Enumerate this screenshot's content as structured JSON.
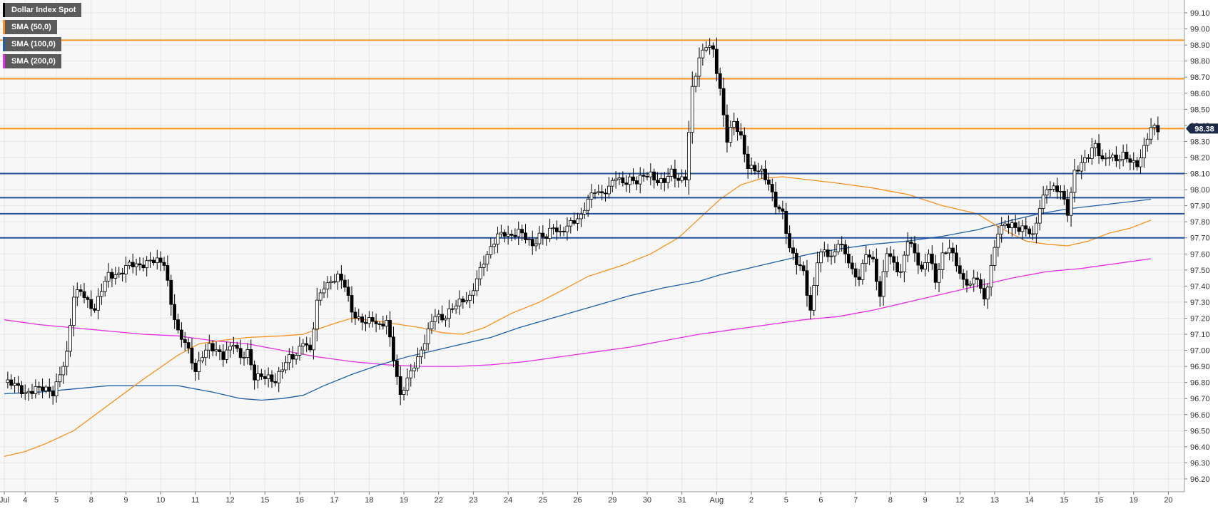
{
  "legend": [
    {
      "label": "Dollar Index Spot",
      "color": "#000000"
    },
    {
      "label": "SMA (50,0)",
      "color": "#f7931e"
    },
    {
      "label": "SMA (100,0)",
      "color": "#1f5fa8"
    },
    {
      "label": "SMA (200,0)",
      "color": "#e62ee6"
    }
  ],
  "last_price": "98.38",
  "colors": {
    "up_fill": "#ffffff",
    "down_fill": "#000000",
    "wick": "#000000",
    "sma50": "#f7931e",
    "sma100": "#1f5fa8",
    "sma200": "#e62ee6",
    "resistance": "#f7931e",
    "support": "#1f4e9a",
    "grid": "#e6e6e6",
    "plot_bg": "#f7f7f7"
  },
  "chart_data": {
    "type": "candlestick",
    "title": "Dollar Index Spot",
    "ylim": [
      96.12,
      99.18
    ],
    "y_ticks": [
      "99.10",
      "99.00",
      "98.90",
      "98.80",
      "98.70",
      "98.60",
      "98.50",
      "98.40",
      "98.30",
      "98.20",
      "98.10",
      "98.00",
      "97.90",
      "97.80",
      "97.70",
      "97.60",
      "97.50",
      "97.40",
      "97.30",
      "97.20",
      "97.10",
      "97.00",
      "96.90",
      "96.80",
      "96.70",
      "96.60",
      "96.50",
      "96.40",
      "96.30",
      "96.20"
    ],
    "x_ticks": [
      {
        "label": "Jul",
        "bar": 0
      },
      {
        "label": "4",
        "bar": 6
      },
      {
        "label": "5",
        "bar": 15
      },
      {
        "label": "8",
        "bar": 25
      },
      {
        "label": "9",
        "bar": 35
      },
      {
        "label": "10",
        "bar": 45
      },
      {
        "label": "11",
        "bar": 55
      },
      {
        "label": "12",
        "bar": 65
      },
      {
        "label": "15",
        "bar": 75
      },
      {
        "label": "16",
        "bar": 85
      },
      {
        "label": "17",
        "bar": 95
      },
      {
        "label": "18",
        "bar": 105
      },
      {
        "label": "19",
        "bar": 115
      },
      {
        "label": "22",
        "bar": 125
      },
      {
        "label": "23",
        "bar": 135
      },
      {
        "label": "24",
        "bar": 145
      },
      {
        "label": "25",
        "bar": 155
      },
      {
        "label": "26",
        "bar": 165
      },
      {
        "label": "29",
        "bar": 175
      },
      {
        "label": "30",
        "bar": 185
      },
      {
        "label": "31",
        "bar": 195
      },
      {
        "label": "Aug",
        "bar": 205
      },
      {
        "label": "2",
        "bar": 215
      },
      {
        "label": "5",
        "bar": 225
      },
      {
        "label": "6",
        "bar": 235
      },
      {
        "label": "7",
        "bar": 245
      },
      {
        "label": "8",
        "bar": 255
      },
      {
        "label": "9",
        "bar": 265
      },
      {
        "label": "12",
        "bar": 275
      },
      {
        "label": "13",
        "bar": 285
      },
      {
        "label": "14",
        "bar": 295
      },
      {
        "label": "15",
        "bar": 305
      },
      {
        "label": "16",
        "bar": 315
      },
      {
        "label": "19",
        "bar": 325
      },
      {
        "label": "20",
        "bar": 335
      }
    ],
    "resistance_levels": [
      98.93,
      98.69,
      98.38
    ],
    "support_levels": [
      98.1,
      97.95,
      97.85,
      97.7
    ],
    "ohlc_anchors": [
      [
        0,
        96.8
      ],
      [
        3,
        96.78
      ],
      [
        6,
        96.74
      ],
      [
        9,
        96.76
      ],
      [
        12,
        96.75
      ],
      [
        14,
        96.74
      ],
      [
        16,
        96.86
      ],
      [
        18,
        96.97
      ],
      [
        20,
        97.33
      ],
      [
        22,
        97.38
      ],
      [
        24,
        97.31
      ],
      [
        26,
        97.25
      ],
      [
        28,
        97.37
      ],
      [
        30,
        97.47
      ],
      [
        33,
        97.48
      ],
      [
        36,
        97.53
      ],
      [
        38,
        97.52
      ],
      [
        40,
        97.54
      ],
      [
        42,
        97.57
      ],
      [
        44,
        97.55
      ],
      [
        46,
        97.53
      ],
      [
        48,
        97.3
      ],
      [
        50,
        97.12
      ],
      [
        52,
        97.05
      ],
      [
        55,
        96.86
      ],
      [
        57,
        96.98
      ],
      [
        59,
        97.04
      ],
      [
        61,
        96.99
      ],
      [
        63,
        96.95
      ],
      [
        66,
        97.06
      ],
      [
        68,
        96.96
      ],
      [
        70,
        96.98
      ],
      [
        72,
        96.82
      ],
      [
        74,
        96.85
      ],
      [
        76,
        96.84
      ],
      [
        78,
        96.8
      ],
      [
        80,
        96.88
      ],
      [
        82,
        96.96
      ],
      [
        84,
        96.98
      ],
      [
        86,
        97.06
      ],
      [
        88,
        96.98
      ],
      [
        90,
        97.3
      ],
      [
        92,
        97.41
      ],
      [
        94,
        97.43
      ],
      [
        96,
        97.45
      ],
      [
        98,
        97.4
      ],
      [
        100,
        97.25
      ],
      [
        102,
        97.2
      ],
      [
        104,
        97.17
      ],
      [
        106,
        97.18
      ],
      [
        108,
        97.15
      ],
      [
        110,
        97.2
      ],
      [
        112,
        96.95
      ],
      [
        114,
        96.7
      ],
      [
        116,
        96.82
      ],
      [
        118,
        96.92
      ],
      [
        120,
        97.0
      ],
      [
        122,
        97.11
      ],
      [
        124,
        97.22
      ],
      [
        126,
        97.2
      ],
      [
        128,
        97.25
      ],
      [
        130,
        97.28
      ],
      [
        132,
        97.3
      ],
      [
        134,
        97.33
      ],
      [
        136,
        97.46
      ],
      [
        138,
        97.55
      ],
      [
        140,
        97.62
      ],
      [
        142,
        97.72
      ],
      [
        144,
        97.74
      ],
      [
        146,
        97.71
      ],
      [
        148,
        97.73
      ],
      [
        150,
        97.7
      ],
      [
        152,
        97.66
      ],
      [
        154,
        97.72
      ],
      [
        156,
        97.7
      ],
      [
        158,
        97.76
      ],
      [
        160,
        97.73
      ],
      [
        162,
        97.79
      ],
      [
        164,
        97.8
      ],
      [
        166,
        97.82
      ],
      [
        168,
        97.94
      ],
      [
        170,
        98.01
      ],
      [
        172,
        97.97
      ],
      [
        174,
        98.0
      ],
      [
        176,
        98.08
      ],
      [
        178,
        98.05
      ],
      [
        180,
        98.07
      ],
      [
        182,
        98.04
      ],
      [
        184,
        98.08
      ],
      [
        186,
        98.1
      ],
      [
        188,
        98.06
      ],
      [
        190,
        98.05
      ],
      [
        192,
        98.1
      ],
      [
        194,
        98.06
      ],
      [
        196,
        98.09
      ],
      [
        198,
        98.63
      ],
      [
        200,
        98.8
      ],
      [
        202,
        98.9
      ],
      [
        204,
        98.88
      ],
      [
        206,
        98.62
      ],
      [
        208,
        98.3
      ],
      [
        210,
        98.42
      ],
      [
        212,
        98.33
      ],
      [
        214,
        98.15
      ],
      [
        216,
        98.12
      ],
      [
        218,
        98.1
      ],
      [
        220,
        98.04
      ],
      [
        222,
        97.92
      ],
      [
        224,
        97.85
      ],
      [
        226,
        97.62
      ],
      [
        228,
        97.55
      ],
      [
        230,
        97.5
      ],
      [
        232,
        97.24
      ],
      [
        234,
        97.55
      ],
      [
        236,
        97.62
      ],
      [
        238,
        97.58
      ],
      [
        240,
        97.68
      ],
      [
        242,
        97.6
      ],
      [
        244,
        97.48
      ],
      [
        246,
        97.45
      ],
      [
        248,
        97.62
      ],
      [
        250,
        97.55
      ],
      [
        252,
        97.32
      ],
      [
        254,
        97.62
      ],
      [
        256,
        97.55
      ],
      [
        258,
        97.48
      ],
      [
        260,
        97.68
      ],
      [
        262,
        97.6
      ],
      [
        264,
        97.5
      ],
      [
        266,
        97.62
      ],
      [
        268,
        97.42
      ],
      [
        270,
        97.58
      ],
      [
        272,
        97.65
      ],
      [
        274,
        97.55
      ],
      [
        276,
        97.42
      ],
      [
        278,
        97.4
      ],
      [
        280,
        97.46
      ],
      [
        282,
        97.32
      ],
      [
        284,
        97.52
      ],
      [
        286,
        97.73
      ],
      [
        288,
        97.78
      ],
      [
        290,
        97.79
      ],
      [
        292,
        97.76
      ],
      [
        294,
        97.75
      ],
      [
        296,
        97.7
      ],
      [
        298,
        97.9
      ],
      [
        300,
        98.02
      ],
      [
        302,
        98.0
      ],
      [
        304,
        97.98
      ],
      [
        306,
        97.86
      ],
      [
        308,
        98.12
      ],
      [
        310,
        98.16
      ],
      [
        312,
        98.2
      ],
      [
        314,
        98.28
      ],
      [
        316,
        98.19
      ],
      [
        318,
        98.22
      ],
      [
        320,
        98.17
      ],
      [
        322,
        98.21
      ],
      [
        324,
        98.19
      ],
      [
        326,
        98.16
      ],
      [
        328,
        98.25
      ],
      [
        330,
        98.38
      ],
      [
        332,
        98.38
      ]
    ],
    "sma50_points": [
      [
        0,
        96.34
      ],
      [
        6,
        96.37
      ],
      [
        12,
        96.42
      ],
      [
        20,
        96.5
      ],
      [
        30,
        96.66
      ],
      [
        40,
        96.82
      ],
      [
        50,
        96.97
      ],
      [
        56,
        97.04
      ],
      [
        62,
        97.06
      ],
      [
        70,
        97.08
      ],
      [
        80,
        97.09
      ],
      [
        86,
        97.1
      ],
      [
        94,
        97.16
      ],
      [
        100,
        97.2
      ],
      [
        108,
        97.18
      ],
      [
        114,
        97.16
      ],
      [
        120,
        97.14
      ],
      [
        126,
        97.11
      ],
      [
        132,
        97.1
      ],
      [
        138,
        97.14
      ],
      [
        146,
        97.23
      ],
      [
        154,
        97.3
      ],
      [
        162,
        97.39
      ],
      [
        168,
        97.46
      ],
      [
        178,
        97.53
      ],
      [
        186,
        97.6
      ],
      [
        194,
        97.7
      ],
      [
        200,
        97.82
      ],
      [
        206,
        97.94
      ],
      [
        212,
        98.03
      ],
      [
        218,
        98.07
      ],
      [
        224,
        98.08
      ],
      [
        232,
        98.06
      ],
      [
        240,
        98.04
      ],
      [
        250,
        98.01
      ],
      [
        260,
        97.97
      ],
      [
        270,
        97.9
      ],
      [
        280,
        97.85
      ],
      [
        286,
        97.77
      ],
      [
        294,
        97.68
      ],
      [
        300,
        97.66
      ],
      [
        306,
        97.65
      ],
      [
        312,
        97.68
      ],
      [
        318,
        97.73
      ],
      [
        324,
        97.76
      ],
      [
        330,
        97.81
      ]
    ],
    "sma100_points": [
      [
        0,
        96.73
      ],
      [
        10,
        96.74
      ],
      [
        20,
        96.76
      ],
      [
        30,
        96.78
      ],
      [
        40,
        96.78
      ],
      [
        50,
        96.78
      ],
      [
        60,
        96.74
      ],
      [
        68,
        96.7
      ],
      [
        74,
        96.69
      ],
      [
        80,
        96.7
      ],
      [
        86,
        96.72
      ],
      [
        92,
        96.78
      ],
      [
        100,
        96.85
      ],
      [
        108,
        96.91
      ],
      [
        116,
        96.96
      ],
      [
        124,
        97.0
      ],
      [
        132,
        97.04
      ],
      [
        140,
        97.08
      ],
      [
        148,
        97.14
      ],
      [
        156,
        97.19
      ],
      [
        164,
        97.24
      ],
      [
        172,
        97.29
      ],
      [
        180,
        97.34
      ],
      [
        190,
        97.39
      ],
      [
        200,
        97.43
      ],
      [
        206,
        97.47
      ],
      [
        214,
        97.51
      ],
      [
        222,
        97.55
      ],
      [
        232,
        97.6
      ],
      [
        240,
        97.63
      ],
      [
        250,
        97.66
      ],
      [
        260,
        97.68
      ],
      [
        270,
        97.71
      ],
      [
        280,
        97.75
      ],
      [
        290,
        97.81
      ],
      [
        298,
        97.85
      ],
      [
        306,
        97.88
      ],
      [
        314,
        97.9
      ],
      [
        322,
        97.92
      ],
      [
        330,
        97.94
      ]
    ],
    "sma200_points": [
      [
        0,
        97.19
      ],
      [
        10,
        97.16
      ],
      [
        20,
        97.14
      ],
      [
        30,
        97.12
      ],
      [
        40,
        97.1
      ],
      [
        50,
        97.09
      ],
      [
        60,
        97.06
      ],
      [
        70,
        97.04
      ],
      [
        80,
        97.0
      ],
      [
        90,
        96.96
      ],
      [
        100,
        96.93
      ],
      [
        110,
        96.91
      ],
      [
        120,
        96.9
      ],
      [
        130,
        96.9
      ],
      [
        140,
        96.91
      ],
      [
        150,
        96.93
      ],
      [
        160,
        96.96
      ],
      [
        170,
        96.99
      ],
      [
        180,
        97.02
      ],
      [
        190,
        97.06
      ],
      [
        200,
        97.1
      ],
      [
        210,
        97.13
      ],
      [
        220,
        97.16
      ],
      [
        230,
        97.19
      ],
      [
        240,
        97.21
      ],
      [
        250,
        97.25
      ],
      [
        260,
        97.3
      ],
      [
        270,
        97.35
      ],
      [
        280,
        97.4
      ],
      [
        290,
        97.45
      ],
      [
        300,
        97.49
      ],
      [
        310,
        97.51
      ],
      [
        320,
        97.54
      ],
      [
        330,
        97.57
      ]
    ]
  }
}
